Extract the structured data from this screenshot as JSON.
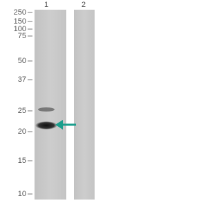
{
  "lanes": [
    "1",
    "2"
  ],
  "markers": [
    "250",
    "150",
    "100",
    "75",
    "50",
    "37",
    "25",
    "20",
    "15",
    "10"
  ]
}
